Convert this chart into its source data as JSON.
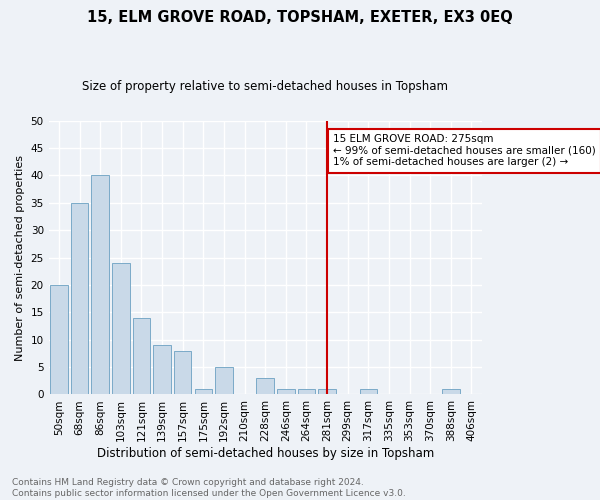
{
  "title": "15, ELM GROVE ROAD, TOPSHAM, EXETER, EX3 0EQ",
  "subtitle": "Size of property relative to semi-detached houses in Topsham",
  "xlabel": "Distribution of semi-detached houses by size in Topsham",
  "ylabel": "Number of semi-detached properties",
  "categories": [
    "50sqm",
    "68sqm",
    "86sqm",
    "103sqm",
    "121sqm",
    "139sqm",
    "157sqm",
    "175sqm",
    "192sqm",
    "210sqm",
    "228sqm",
    "246sqm",
    "264sqm",
    "281sqm",
    "299sqm",
    "317sqm",
    "335sqm",
    "353sqm",
    "370sqm",
    "388sqm",
    "406sqm"
  ],
  "values": [
    20,
    35,
    40,
    24,
    14,
    9,
    8,
    1,
    5,
    0,
    3,
    1,
    1,
    1,
    0,
    1,
    0,
    0,
    0,
    1,
    0
  ],
  "bar_color": "#c9d9e8",
  "bar_edge_color": "#7aaac8",
  "vline_x_idx": 13,
  "vline_color": "#cc0000",
  "annotation_title": "15 ELM GROVE ROAD: 275sqm",
  "annotation_line1": "← 99% of semi-detached houses are smaller (160)",
  "annotation_line2": "1% of semi-detached houses are larger (2) →",
  "annotation_box_color": "#cc0000",
  "ylim": [
    0,
    50
  ],
  "yticks": [
    0,
    5,
    10,
    15,
    20,
    25,
    30,
    35,
    40,
    45,
    50
  ],
  "footer1": "Contains HM Land Registry data © Crown copyright and database right 2024.",
  "footer2": "Contains public sector information licensed under the Open Government Licence v3.0.",
  "bg_color": "#eef2f7",
  "plot_bg_color": "#eef2f7",
  "grid_color": "#ffffff",
  "title_fontsize": 10.5,
  "subtitle_fontsize": 8.5,
  "tick_fontsize": 7.5,
  "ylabel_fontsize": 8,
  "xlabel_fontsize": 8.5,
  "footer_fontsize": 6.5,
  "footer_color": "#666666"
}
